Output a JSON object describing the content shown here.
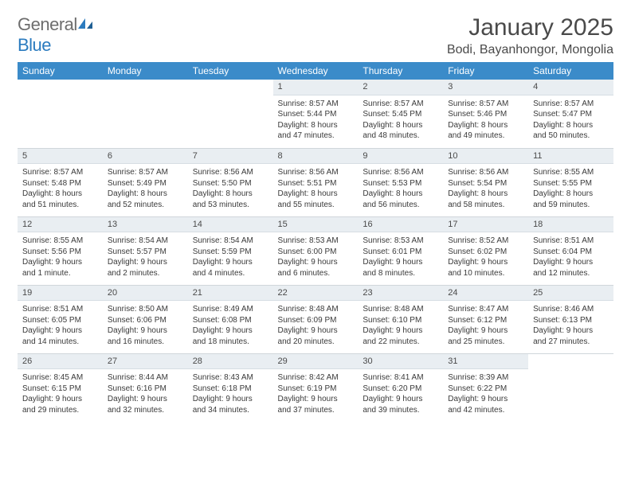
{
  "logo": {
    "text1": "General",
    "text2": "Blue"
  },
  "title": "January 2025",
  "location": "Bodi, Bayanhongor, Mongolia",
  "colors": {
    "header_bg": "#3b8bc9",
    "header_fg": "#ffffff",
    "daynum_bg": "#e9eef2",
    "text": "#3a3a3a",
    "logo_gray": "#6d6d6d",
    "logo_blue": "#2b7bbf"
  },
  "weekdays": [
    "Sunday",
    "Monday",
    "Tuesday",
    "Wednesday",
    "Thursday",
    "Friday",
    "Saturday"
  ],
  "weeks": [
    [
      null,
      null,
      null,
      {
        "n": "1",
        "sunrise": "Sunrise: 8:57 AM",
        "sunset": "Sunset: 5:44 PM",
        "day1": "Daylight: 8 hours",
        "day2": "and 47 minutes."
      },
      {
        "n": "2",
        "sunrise": "Sunrise: 8:57 AM",
        "sunset": "Sunset: 5:45 PM",
        "day1": "Daylight: 8 hours",
        "day2": "and 48 minutes."
      },
      {
        "n": "3",
        "sunrise": "Sunrise: 8:57 AM",
        "sunset": "Sunset: 5:46 PM",
        "day1": "Daylight: 8 hours",
        "day2": "and 49 minutes."
      },
      {
        "n": "4",
        "sunrise": "Sunrise: 8:57 AM",
        "sunset": "Sunset: 5:47 PM",
        "day1": "Daylight: 8 hours",
        "day2": "and 50 minutes."
      }
    ],
    [
      {
        "n": "5",
        "sunrise": "Sunrise: 8:57 AM",
        "sunset": "Sunset: 5:48 PM",
        "day1": "Daylight: 8 hours",
        "day2": "and 51 minutes."
      },
      {
        "n": "6",
        "sunrise": "Sunrise: 8:57 AM",
        "sunset": "Sunset: 5:49 PM",
        "day1": "Daylight: 8 hours",
        "day2": "and 52 minutes."
      },
      {
        "n": "7",
        "sunrise": "Sunrise: 8:56 AM",
        "sunset": "Sunset: 5:50 PM",
        "day1": "Daylight: 8 hours",
        "day2": "and 53 minutes."
      },
      {
        "n": "8",
        "sunrise": "Sunrise: 8:56 AM",
        "sunset": "Sunset: 5:51 PM",
        "day1": "Daylight: 8 hours",
        "day2": "and 55 minutes."
      },
      {
        "n": "9",
        "sunrise": "Sunrise: 8:56 AM",
        "sunset": "Sunset: 5:53 PM",
        "day1": "Daylight: 8 hours",
        "day2": "and 56 minutes."
      },
      {
        "n": "10",
        "sunrise": "Sunrise: 8:56 AM",
        "sunset": "Sunset: 5:54 PM",
        "day1": "Daylight: 8 hours",
        "day2": "and 58 minutes."
      },
      {
        "n": "11",
        "sunrise": "Sunrise: 8:55 AM",
        "sunset": "Sunset: 5:55 PM",
        "day1": "Daylight: 8 hours",
        "day2": "and 59 minutes."
      }
    ],
    [
      {
        "n": "12",
        "sunrise": "Sunrise: 8:55 AM",
        "sunset": "Sunset: 5:56 PM",
        "day1": "Daylight: 9 hours",
        "day2": "and 1 minute."
      },
      {
        "n": "13",
        "sunrise": "Sunrise: 8:54 AM",
        "sunset": "Sunset: 5:57 PM",
        "day1": "Daylight: 9 hours",
        "day2": "and 2 minutes."
      },
      {
        "n": "14",
        "sunrise": "Sunrise: 8:54 AM",
        "sunset": "Sunset: 5:59 PM",
        "day1": "Daylight: 9 hours",
        "day2": "and 4 minutes."
      },
      {
        "n": "15",
        "sunrise": "Sunrise: 8:53 AM",
        "sunset": "Sunset: 6:00 PM",
        "day1": "Daylight: 9 hours",
        "day2": "and 6 minutes."
      },
      {
        "n": "16",
        "sunrise": "Sunrise: 8:53 AM",
        "sunset": "Sunset: 6:01 PM",
        "day1": "Daylight: 9 hours",
        "day2": "and 8 minutes."
      },
      {
        "n": "17",
        "sunrise": "Sunrise: 8:52 AM",
        "sunset": "Sunset: 6:02 PM",
        "day1": "Daylight: 9 hours",
        "day2": "and 10 minutes."
      },
      {
        "n": "18",
        "sunrise": "Sunrise: 8:51 AM",
        "sunset": "Sunset: 6:04 PM",
        "day1": "Daylight: 9 hours",
        "day2": "and 12 minutes."
      }
    ],
    [
      {
        "n": "19",
        "sunrise": "Sunrise: 8:51 AM",
        "sunset": "Sunset: 6:05 PM",
        "day1": "Daylight: 9 hours",
        "day2": "and 14 minutes."
      },
      {
        "n": "20",
        "sunrise": "Sunrise: 8:50 AM",
        "sunset": "Sunset: 6:06 PM",
        "day1": "Daylight: 9 hours",
        "day2": "and 16 minutes."
      },
      {
        "n": "21",
        "sunrise": "Sunrise: 8:49 AM",
        "sunset": "Sunset: 6:08 PM",
        "day1": "Daylight: 9 hours",
        "day2": "and 18 minutes."
      },
      {
        "n": "22",
        "sunrise": "Sunrise: 8:48 AM",
        "sunset": "Sunset: 6:09 PM",
        "day1": "Daylight: 9 hours",
        "day2": "and 20 minutes."
      },
      {
        "n": "23",
        "sunrise": "Sunrise: 8:48 AM",
        "sunset": "Sunset: 6:10 PM",
        "day1": "Daylight: 9 hours",
        "day2": "and 22 minutes."
      },
      {
        "n": "24",
        "sunrise": "Sunrise: 8:47 AM",
        "sunset": "Sunset: 6:12 PM",
        "day1": "Daylight: 9 hours",
        "day2": "and 25 minutes."
      },
      {
        "n": "25",
        "sunrise": "Sunrise: 8:46 AM",
        "sunset": "Sunset: 6:13 PM",
        "day1": "Daylight: 9 hours",
        "day2": "and 27 minutes."
      }
    ],
    [
      {
        "n": "26",
        "sunrise": "Sunrise: 8:45 AM",
        "sunset": "Sunset: 6:15 PM",
        "day1": "Daylight: 9 hours",
        "day2": "and 29 minutes."
      },
      {
        "n": "27",
        "sunrise": "Sunrise: 8:44 AM",
        "sunset": "Sunset: 6:16 PM",
        "day1": "Daylight: 9 hours",
        "day2": "and 32 minutes."
      },
      {
        "n": "28",
        "sunrise": "Sunrise: 8:43 AM",
        "sunset": "Sunset: 6:18 PM",
        "day1": "Daylight: 9 hours",
        "day2": "and 34 minutes."
      },
      {
        "n": "29",
        "sunrise": "Sunrise: 8:42 AM",
        "sunset": "Sunset: 6:19 PM",
        "day1": "Daylight: 9 hours",
        "day2": "and 37 minutes."
      },
      {
        "n": "30",
        "sunrise": "Sunrise: 8:41 AM",
        "sunset": "Sunset: 6:20 PM",
        "day1": "Daylight: 9 hours",
        "day2": "and 39 minutes."
      },
      {
        "n": "31",
        "sunrise": "Sunrise: 8:39 AM",
        "sunset": "Sunset: 6:22 PM",
        "day1": "Daylight: 9 hours",
        "day2": "and 42 minutes."
      },
      null
    ]
  ]
}
